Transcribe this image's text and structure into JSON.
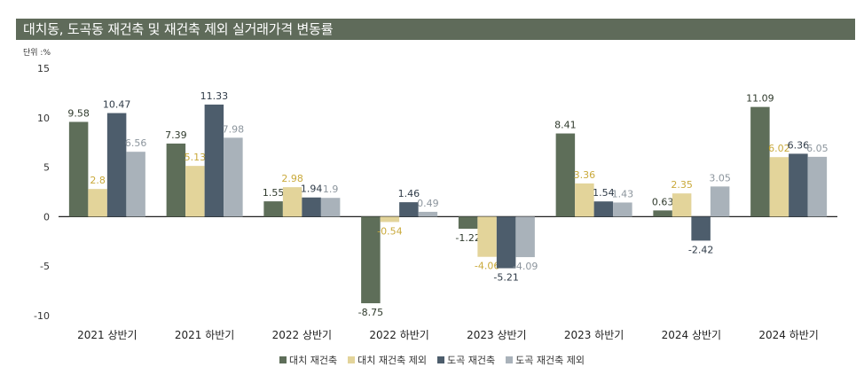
{
  "title": "대치동, 도곡동 재건축 및 재건축 제외 실거래가격 변동률",
  "unit": "단위 :%",
  "chart_data": {
    "type": "bar",
    "categories": [
      "2021 상반기",
      "2021 하반기",
      "2022 상반기",
      "2022 하반기",
      "2023 상반기",
      "2023 하반기",
      "2024 상반기",
      "2024 하반기"
    ],
    "series": [
      {
        "name": "대치 재건축",
        "color": "#5e6e59",
        "label_color": "#2f3a2c",
        "values": [
          9.58,
          7.39,
          1.55,
          -8.75,
          -1.22,
          8.41,
          0.63,
          11.09
        ]
      },
      {
        "name": "대치 재건축 제외",
        "color": "#e3d49a",
        "label_color": "#c9a93a",
        "values": [
          2.8,
          5.13,
          2.98,
          -0.54,
          -4.06,
          3.36,
          2.35,
          6.02
        ]
      },
      {
        "name": "도곡 재건축",
        "color": "#4d5d6c",
        "label_color": "#2e3a47",
        "values": [
          10.47,
          11.33,
          1.94,
          1.46,
          -5.21,
          1.54,
          -2.42,
          6.36
        ]
      },
      {
        "name": "도곡 재건축 제외",
        "color": "#a9b2ba",
        "label_color": "#8c959d",
        "values": [
          6.56,
          7.98,
          1.9,
          0.49,
          -4.09,
          1.43,
          3.05,
          6.05
        ]
      }
    ],
    "ylim": [
      -10,
      15
    ],
    "yticks": [
      "15",
      "10",
      "5",
      "0",
      "-5",
      "-10"
    ],
    "legend_position": "bottom",
    "grid": false
  }
}
